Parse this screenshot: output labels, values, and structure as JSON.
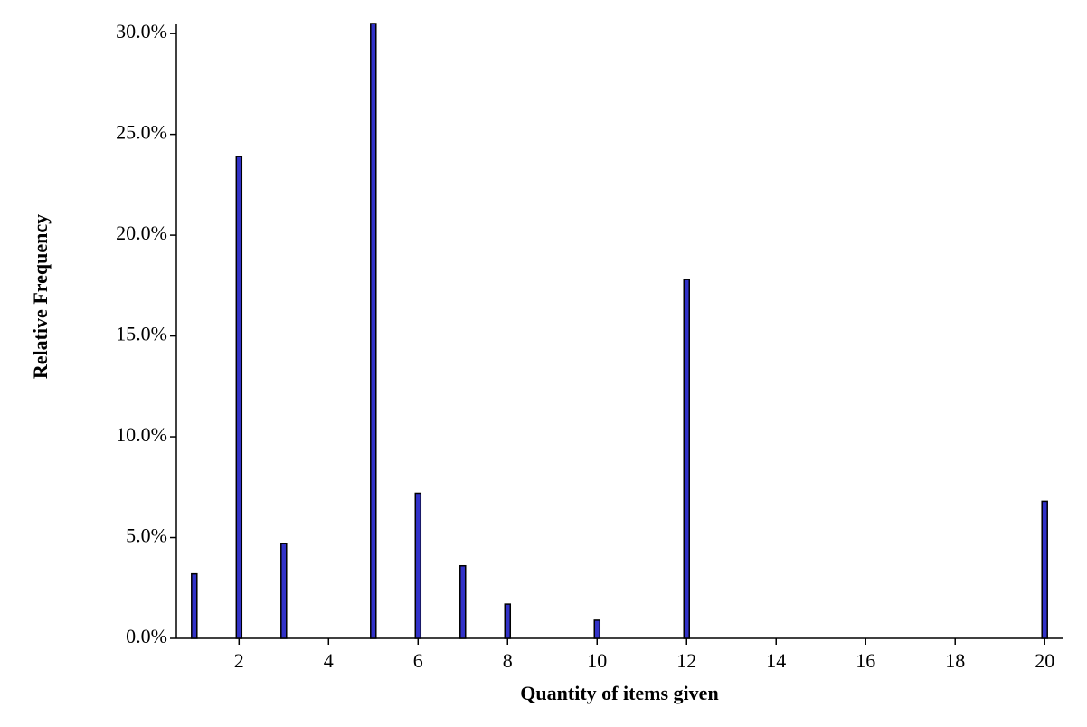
{
  "chart_data": {
    "type": "bar",
    "x": [
      1,
      2,
      3,
      5,
      6,
      7,
      8,
      10,
      12,
      20
    ],
    "values": [
      3.2,
      23.9,
      4.7,
      30.5,
      7.2,
      3.6,
      1.7,
      0.9,
      17.8,
      6.8
    ],
    "color": "#3232c8",
    "x_label": "Quantity of items given",
    "y_label": "Relative Frequency",
    "xlim": [
      0.6,
      20.4
    ],
    "xticks": [
      2,
      4,
      6,
      8,
      10,
      12,
      14,
      16,
      18,
      20
    ],
    "ylim": [
      0,
      30.5
    ],
    "yticks": [
      {
        "value": 0,
        "label": "0.0%"
      },
      {
        "value": 5,
        "label": "5.0%"
      },
      {
        "value": 10,
        "label": "10.0%"
      },
      {
        "value": 15,
        "label": "15.0%"
      },
      {
        "value": 20,
        "label": "20.0%"
      },
      {
        "value": 25,
        "label": "25.0%"
      },
      {
        "value": 30,
        "label": "30.0%"
      }
    ],
    "grid": false
  }
}
